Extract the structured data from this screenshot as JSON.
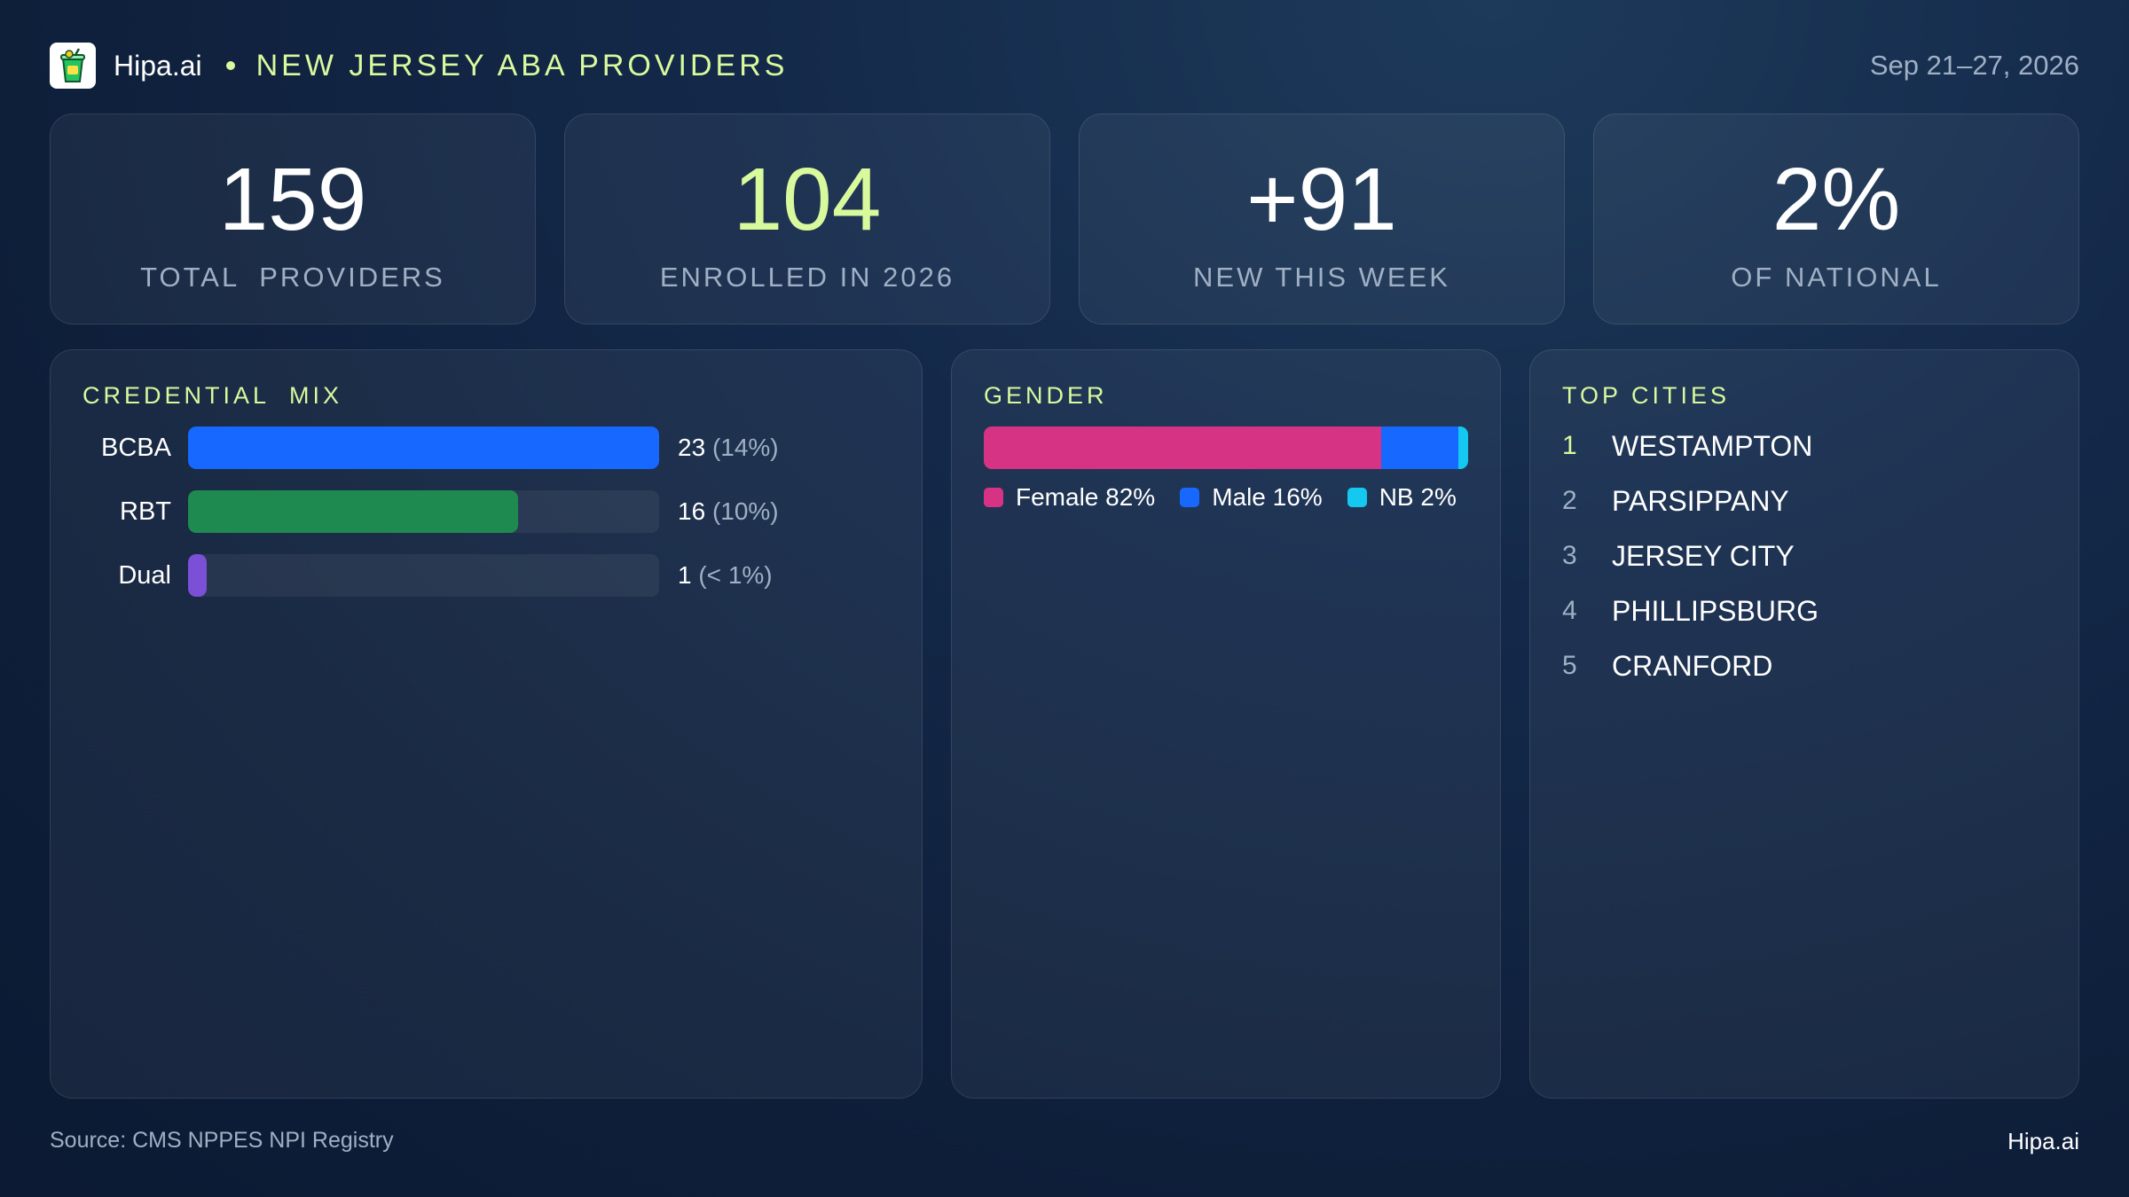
{
  "header": {
    "brand": "Hipa.ai",
    "title": "NEW JERSEY ABA PROVIDERS",
    "date_range": "Sep 21–27, 2026",
    "logo_icon": "cup-drink-icon"
  },
  "stats": [
    {
      "value": "159",
      "label": "TOTAL  PROVIDERS"
    },
    {
      "value": "104",
      "label": "ENROLLED IN 2026"
    },
    {
      "value": "+91",
      "label": "NEW THIS WEEK"
    },
    {
      "value": "2%",
      "label": "OF NATIONAL"
    }
  ],
  "credential_mix": {
    "title": "CREDENTIAL  MIX",
    "items": [
      {
        "label": "BCBA",
        "count": "23",
        "pct": "(14%)",
        "fill": 1.0,
        "color": "#1668ff"
      },
      {
        "label": "RBT",
        "count": "16",
        "pct": "(10%)",
        "fill": 0.7,
        "color": "#1f8a50"
      },
      {
        "label": "Dual",
        "count": "1",
        "pct": "(< 1%)",
        "fill": 0.04,
        "color": "#7b4fd6"
      }
    ]
  },
  "gender": {
    "title": "GENDER",
    "segments": [
      {
        "label": "Female 82%",
        "share": 82,
        "color": "#d63384"
      },
      {
        "label": "Male 16%",
        "share": 16,
        "color": "#1668ff"
      },
      {
        "label": "NB 2%",
        "share": 2,
        "color": "#14c8f0"
      }
    ]
  },
  "top_cities": {
    "title": "TOP CITIES",
    "items": [
      {
        "rank": "1",
        "name": "WESTAMPTON"
      },
      {
        "rank": "2",
        "name": "PARSIPPANY"
      },
      {
        "rank": "3",
        "name": "JERSEY CITY"
      },
      {
        "rank": "4",
        "name": "PHILLIPSBURG"
      },
      {
        "rank": "5",
        "name": "CRANFORD"
      }
    ]
  },
  "footer": {
    "source": "Source: CMS NPPES NPI Registry",
    "brand": "Hipa.ai"
  }
}
